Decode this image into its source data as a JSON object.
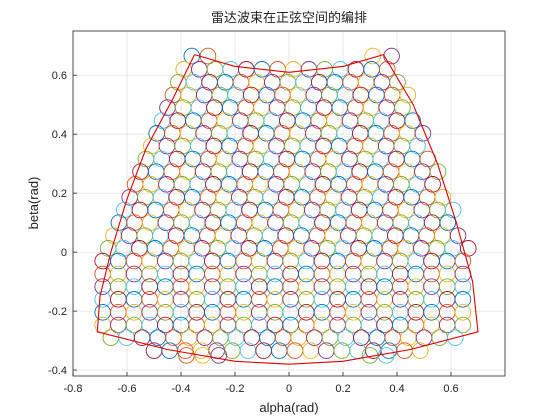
{
  "chart_data": {
    "type": "scatter",
    "title": "雷达波束在正弦空间的编排",
    "xlabel": "alpha(rad)",
    "ylabel": "beta(rad)",
    "xlim": [
      -0.8,
      0.8
    ],
    "ylim": [
      -0.42,
      0.75
    ],
    "xticks": [
      "-0.8",
      "-0.6",
      "-0.4",
      "-0.2",
      "0",
      "0.2",
      "0.4",
      "0.6"
    ],
    "xtick_values": [
      -0.8,
      -0.6,
      -0.4,
      -0.2,
      0,
      0.2,
      0.4,
      0.6
    ],
    "yticks": [
      "-0.4",
      "-0.2",
      "0",
      "0.2",
      "0.4",
      "0.6"
    ],
    "ytick_values": [
      -0.4,
      -0.2,
      0,
      0.2,
      0.4,
      0.6
    ],
    "grid": true,
    "beam_radius": 0.029,
    "beam_colors": [
      "#0072bd",
      "#d95319",
      "#edb120",
      "#7e2f8e",
      "#77ac30",
      "#4dbeee",
      "#a2142f"
    ],
    "boundary_color": "#e00000",
    "coverage_boundary": {
      "x": [
        -0.35,
        -0.43,
        -0.53,
        -0.6,
        -0.66,
        -0.7,
        -0.71,
        -0.45,
        -0.2,
        0.0,
        0.2,
        0.45,
        0.7,
        0.68,
        0.62,
        0.55,
        0.46,
        0.35,
        0.2,
        0.0,
        -0.2,
        -0.35
      ],
      "y": [
        0.67,
        0.52,
        0.35,
        0.18,
        0.0,
        -0.15,
        -0.27,
        -0.33,
        -0.37,
        -0.38,
        -0.37,
        -0.33,
        -0.27,
        -0.1,
        0.1,
        0.3,
        0.5,
        0.67,
        0.63,
        0.61,
        0.63,
        0.67
      ]
    },
    "beam_rows": [
      {
        "y": 0.665,
        "x_min": -0.36,
        "x_max": 0.38,
        "start": 0,
        "only": [
          -0.36,
          -0.3,
          0.31,
          0.38
        ]
      },
      {
        "y": 0.62,
        "x_min": -0.39,
        "x_max": 0.4,
        "start": 2
      },
      {
        "y": 0.576,
        "x_min": -0.41,
        "x_max": 0.42,
        "start": 4
      },
      {
        "y": 0.533,
        "x_min": -0.43,
        "x_max": 0.44,
        "start": 1
      },
      {
        "y": 0.49,
        "x_min": -0.45,
        "x_max": 0.46,
        "start": 3
      },
      {
        "y": 0.446,
        "x_min": -0.47,
        "x_max": 0.48,
        "start": 5
      },
      {
        "y": 0.403,
        "x_min": -0.49,
        "x_max": 0.5,
        "start": 0
      },
      {
        "y": 0.36,
        "x_min": -0.51,
        "x_max": 0.52,
        "start": 2
      },
      {
        "y": 0.316,
        "x_min": -0.53,
        "x_max": 0.54,
        "start": 4
      },
      {
        "y": 0.273,
        "x_min": -0.55,
        "x_max": 0.56,
        "start": 6
      },
      {
        "y": 0.23,
        "x_min": -0.57,
        "x_max": 0.58,
        "start": 1
      },
      {
        "y": 0.186,
        "x_min": -0.59,
        "x_max": 0.6,
        "start": 3
      },
      {
        "y": 0.143,
        "x_min": -0.61,
        "x_max": 0.62,
        "start": 5
      },
      {
        "y": 0.1,
        "x_min": -0.63,
        "x_max": 0.64,
        "start": 0
      },
      {
        "y": 0.056,
        "x_min": -0.65,
        "x_max": 0.66,
        "start": 2
      },
      {
        "y": 0.013,
        "x_min": -0.67,
        "x_max": 0.68,
        "start": 4
      },
      {
        "y": -0.03,
        "x_min": -0.69,
        "x_max": 0.7,
        "start": 6
      },
      {
        "y": -0.074,
        "x_min": -0.69,
        "x_max": 0.7,
        "start": 1
      },
      {
        "y": -0.117,
        "x_min": -0.69,
        "x_max": 0.7,
        "start": 3
      },
      {
        "y": -0.16,
        "x_min": -0.69,
        "x_max": 0.7,
        "start": 5
      },
      {
        "y": -0.204,
        "x_min": -0.69,
        "x_max": 0.7,
        "start": 0
      },
      {
        "y": -0.247,
        "x_min": -0.69,
        "x_max": 0.7,
        "start": 2
      },
      {
        "y": -0.29,
        "x_min": -0.66,
        "x_max": 0.67,
        "start": 4
      },
      {
        "y": -0.334,
        "x_min": -0.5,
        "x_max": 0.52,
        "start": 6
      },
      {
        "y": -0.35,
        "x_min": -0.38,
        "x_max": 0.36,
        "start": 1,
        "only": [
          -0.38,
          -0.32,
          -0.26,
          0.3,
          0.36
        ]
      }
    ]
  }
}
